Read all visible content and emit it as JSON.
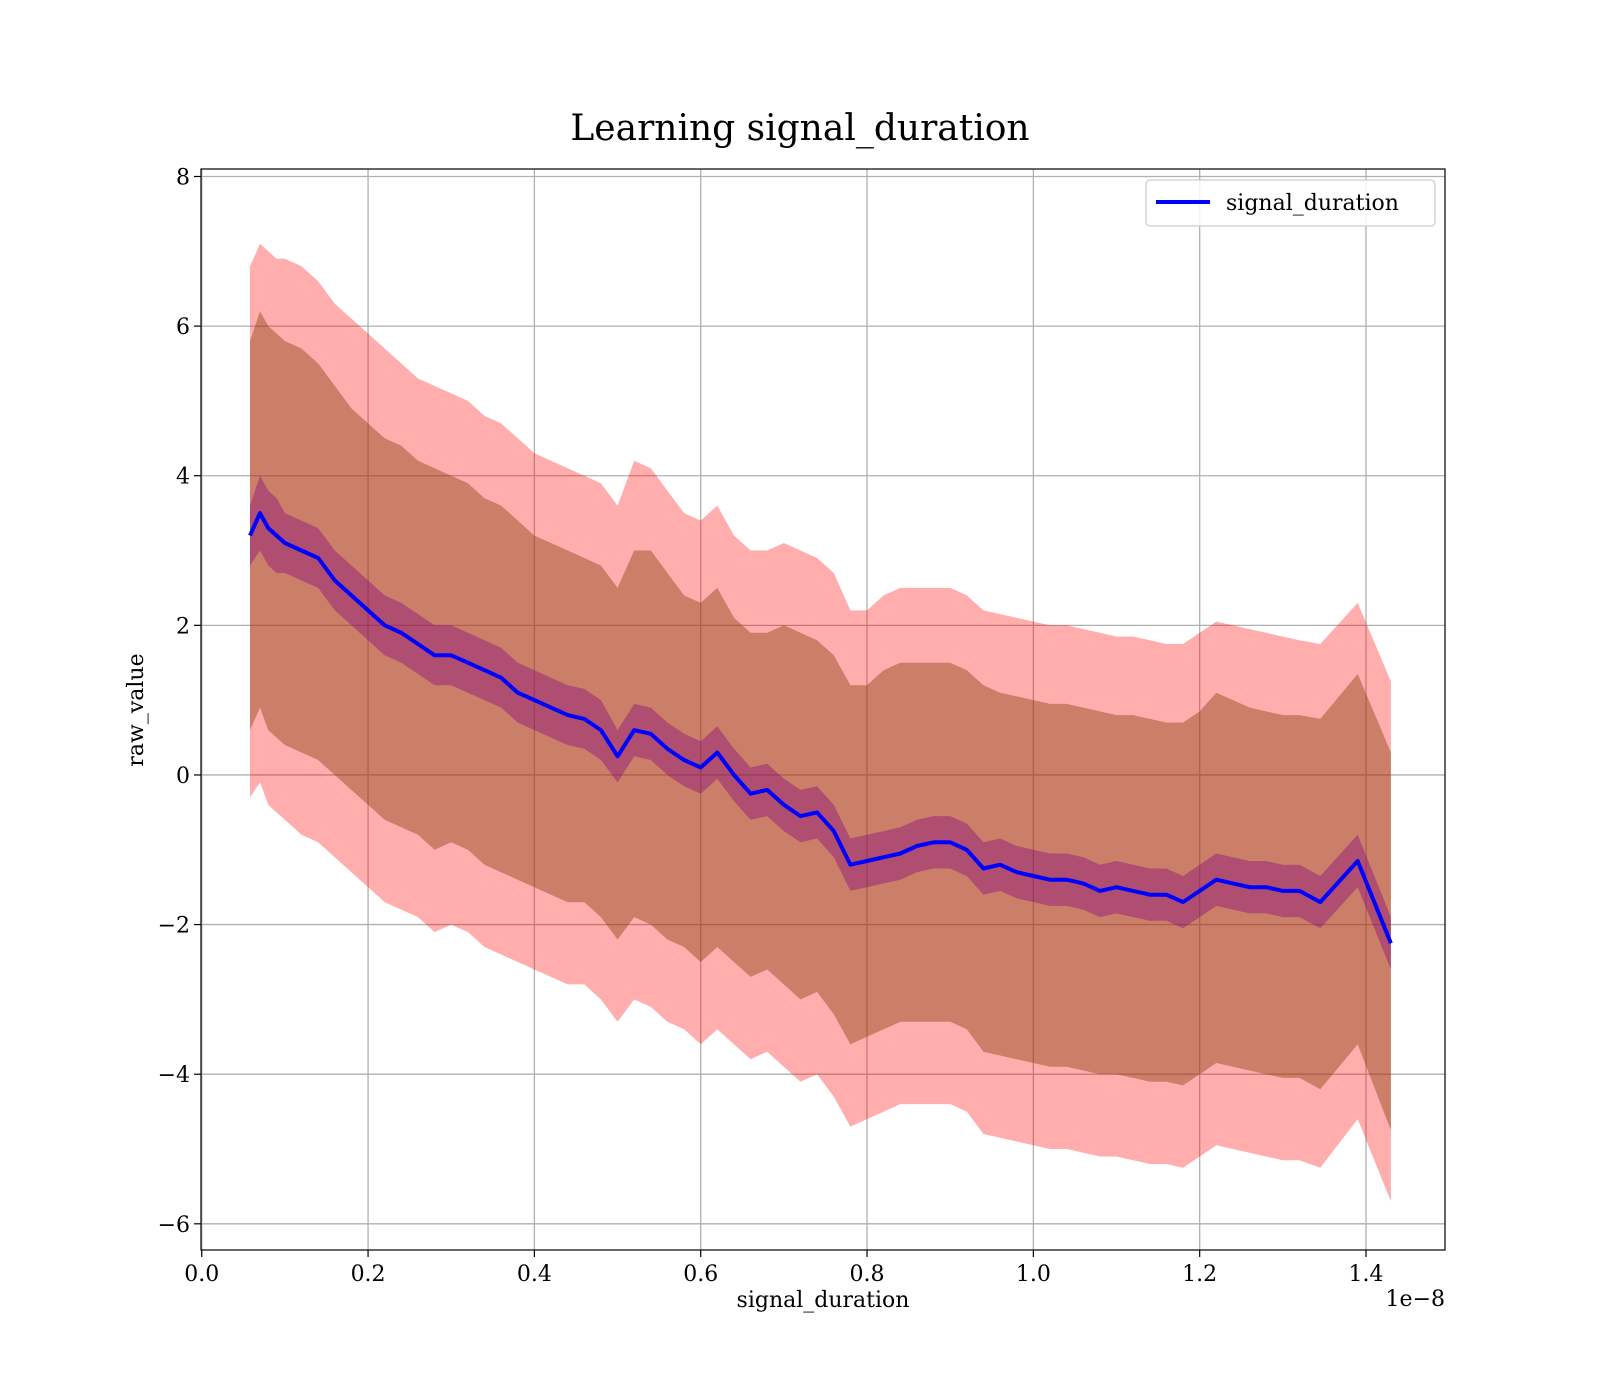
{
  "chart_data": {
    "type": "line",
    "title": "Learning signal_duration",
    "xlabel": "signal_duration",
    "ylabel": "raw_value",
    "x_offset_text": "1e−8",
    "xlim": [
      -0.0009,
      1.495
    ],
    "ylim": [
      -6.35,
      8.1
    ],
    "x_ticks": [
      0.0,
      0.2,
      0.4,
      0.6,
      0.8,
      1.0,
      1.2,
      1.4
    ],
    "x_tick_labels": [
      "0.0",
      "0.2",
      "0.4",
      "0.6",
      "0.8",
      "1.0",
      "1.2",
      "1.4"
    ],
    "y_ticks": [
      -6,
      -4,
      -2,
      0,
      2,
      4,
      6,
      8
    ],
    "y_tick_labels": [
      "−6",
      "−4",
      "−2",
      "0",
      "2",
      "4",
      "6",
      "8"
    ],
    "grid": true,
    "legend_position": "upper right",
    "colors": {
      "line": "#0000ff",
      "outer_band": "#ff0000",
      "middle_band": "#8b4513",
      "inner_band": "#800080"
    },
    "series": [
      {
        "name": "signal_duration",
        "x": [
          0.058,
          0.07,
          0.08,
          0.09,
          0.1,
          0.12,
          0.14,
          0.16,
          0.18,
          0.2,
          0.22,
          0.24,
          0.26,
          0.28,
          0.3,
          0.32,
          0.34,
          0.36,
          0.38,
          0.4,
          0.42,
          0.44,
          0.46,
          0.48,
          0.5,
          0.52,
          0.54,
          0.56,
          0.58,
          0.6,
          0.62,
          0.64,
          0.66,
          0.68,
          0.7,
          0.72,
          0.74,
          0.76,
          0.78,
          0.8,
          0.82,
          0.84,
          0.86,
          0.88,
          0.9,
          0.92,
          0.94,
          0.96,
          0.98,
          1.0,
          1.02,
          1.04,
          1.06,
          1.08,
          1.1,
          1.12,
          1.14,
          1.16,
          1.18,
          1.2,
          1.22,
          1.24,
          1.26,
          1.28,
          1.3,
          1.32,
          1.345,
          1.39,
          1.43
        ],
        "y": [
          3.2,
          3.5,
          3.3,
          3.2,
          3.1,
          3.0,
          2.9,
          2.6,
          2.4,
          2.2,
          2.0,
          1.9,
          1.75,
          1.6,
          1.6,
          1.5,
          1.4,
          1.3,
          1.1,
          1.0,
          0.9,
          0.8,
          0.75,
          0.6,
          0.25,
          0.6,
          0.55,
          0.35,
          0.2,
          0.1,
          0.3,
          0.0,
          -0.25,
          -0.2,
          -0.4,
          -0.55,
          -0.5,
          -0.75,
          -1.2,
          -1.15,
          -1.1,
          -1.05,
          -0.95,
          -0.9,
          -0.9,
          -1.0,
          -1.25,
          -1.2,
          -1.3,
          -1.35,
          -1.4,
          -1.4,
          -1.45,
          -1.55,
          -1.5,
          -1.55,
          -1.6,
          -1.6,
          -1.7,
          -1.55,
          -1.4,
          -1.45,
          -1.5,
          -1.5,
          -1.55,
          -1.55,
          -1.7,
          -1.15,
          -2.25
        ],
        "outer_band": {
          "upper": [
            6.8,
            7.1,
            7.0,
            6.9,
            6.9,
            6.8,
            6.6,
            6.3,
            6.1,
            5.9,
            5.7,
            5.5,
            5.3,
            5.2,
            5.1,
            5.0,
            4.8,
            4.7,
            4.5,
            4.3,
            4.2,
            4.1,
            4.0,
            3.9,
            3.6,
            4.2,
            4.1,
            3.8,
            3.5,
            3.4,
            3.6,
            3.2,
            3.0,
            3.0,
            3.1,
            3.0,
            2.9,
            2.7,
            2.2,
            2.2,
            2.4,
            2.5,
            2.5,
            2.5,
            2.5,
            2.4,
            2.2,
            2.15,
            2.1,
            2.05,
            2.0,
            2.0,
            1.95,
            1.9,
            1.85,
            1.85,
            1.8,
            1.75,
            1.75,
            1.9,
            2.05,
            2.0,
            1.95,
            1.9,
            1.85,
            1.8,
            1.75,
            2.3,
            1.25
          ],
          "lower": [
            -0.3,
            -0.1,
            -0.4,
            -0.5,
            -0.6,
            -0.8,
            -0.9,
            -1.1,
            -1.3,
            -1.5,
            -1.7,
            -1.8,
            -1.9,
            -2.1,
            -2.0,
            -2.1,
            -2.3,
            -2.4,
            -2.5,
            -2.6,
            -2.7,
            -2.8,
            -2.8,
            -3.0,
            -3.3,
            -3.0,
            -3.1,
            -3.3,
            -3.4,
            -3.6,
            -3.4,
            -3.6,
            -3.8,
            -3.7,
            -3.9,
            -4.1,
            -4.0,
            -4.3,
            -4.7,
            -4.6,
            -4.5,
            -4.4,
            -4.4,
            -4.4,
            -4.4,
            -4.5,
            -4.8,
            -4.85,
            -4.9,
            -4.95,
            -5.0,
            -5.0,
            -5.05,
            -5.1,
            -5.1,
            -5.15,
            -5.2,
            -5.2,
            -5.25,
            -5.1,
            -4.95,
            -5.0,
            -5.05,
            -5.1,
            -5.15,
            -5.15,
            -5.25,
            -4.6,
            -5.7
          ]
        },
        "middle_band": {
          "upper": [
            5.8,
            6.2,
            6.0,
            5.9,
            5.8,
            5.7,
            5.5,
            5.2,
            4.9,
            4.7,
            4.5,
            4.4,
            4.2,
            4.1,
            4.0,
            3.9,
            3.7,
            3.6,
            3.4,
            3.2,
            3.1,
            3.0,
            2.9,
            2.8,
            2.5,
            3.0,
            3.0,
            2.7,
            2.4,
            2.3,
            2.5,
            2.1,
            1.9,
            1.9,
            2.0,
            1.9,
            1.8,
            1.6,
            1.2,
            1.2,
            1.4,
            1.5,
            1.5,
            1.5,
            1.5,
            1.4,
            1.2,
            1.1,
            1.05,
            1.0,
            0.95,
            0.95,
            0.9,
            0.85,
            0.8,
            0.8,
            0.75,
            0.7,
            0.7,
            0.85,
            1.1,
            1.0,
            0.9,
            0.85,
            0.8,
            0.8,
            0.75,
            1.35,
            0.3
          ],
          "lower": [
            0.6,
            0.9,
            0.6,
            0.5,
            0.4,
            0.3,
            0.2,
            0.0,
            -0.2,
            -0.4,
            -0.6,
            -0.7,
            -0.8,
            -1.0,
            -0.9,
            -1.0,
            -1.2,
            -1.3,
            -1.4,
            -1.5,
            -1.6,
            -1.7,
            -1.7,
            -1.9,
            -2.2,
            -1.9,
            -2.0,
            -2.2,
            -2.3,
            -2.5,
            -2.3,
            -2.5,
            -2.7,
            -2.6,
            -2.8,
            -3.0,
            -2.9,
            -3.2,
            -3.6,
            -3.5,
            -3.4,
            -3.3,
            -3.3,
            -3.3,
            -3.3,
            -3.4,
            -3.7,
            -3.75,
            -3.8,
            -3.85,
            -3.9,
            -3.9,
            -3.95,
            -4.0,
            -4.0,
            -4.05,
            -4.1,
            -4.1,
            -4.15,
            -4.0,
            -3.85,
            -3.9,
            -3.95,
            -4.0,
            -4.05,
            -4.05,
            -4.2,
            -3.6,
            -4.75
          ]
        },
        "inner_band": {
          "upper": [
            3.6,
            4.0,
            3.8,
            3.7,
            3.5,
            3.4,
            3.3,
            3.0,
            2.8,
            2.6,
            2.4,
            2.3,
            2.15,
            2.0,
            2.0,
            1.9,
            1.8,
            1.7,
            1.5,
            1.4,
            1.3,
            1.2,
            1.15,
            1.0,
            0.6,
            0.95,
            0.9,
            0.7,
            0.55,
            0.45,
            0.65,
            0.35,
            0.1,
            0.15,
            -0.05,
            -0.2,
            -0.15,
            -0.4,
            -0.85,
            -0.8,
            -0.75,
            -0.7,
            -0.6,
            -0.55,
            -0.55,
            -0.65,
            -0.9,
            -0.85,
            -0.95,
            -1.0,
            -1.05,
            -1.05,
            -1.1,
            -1.2,
            -1.15,
            -1.2,
            -1.25,
            -1.25,
            -1.35,
            -1.2,
            -1.05,
            -1.1,
            -1.15,
            -1.15,
            -1.2,
            -1.2,
            -1.35,
            -0.8,
            -1.9
          ],
          "lower": [
            2.8,
            3.0,
            2.8,
            2.7,
            2.7,
            2.6,
            2.5,
            2.2,
            2.0,
            1.8,
            1.6,
            1.5,
            1.35,
            1.2,
            1.2,
            1.1,
            1.0,
            0.9,
            0.7,
            0.6,
            0.5,
            0.4,
            0.35,
            0.2,
            -0.1,
            0.25,
            0.2,
            0.0,
            -0.15,
            -0.25,
            -0.05,
            -0.35,
            -0.6,
            -0.55,
            -0.75,
            -0.9,
            -0.85,
            -1.1,
            -1.55,
            -1.5,
            -1.45,
            -1.4,
            -1.3,
            -1.25,
            -1.25,
            -1.35,
            -1.6,
            -1.55,
            -1.65,
            -1.7,
            -1.75,
            -1.75,
            -1.8,
            -1.9,
            -1.85,
            -1.9,
            -1.95,
            -1.95,
            -2.05,
            -1.9,
            -1.75,
            -1.8,
            -1.85,
            -1.85,
            -1.9,
            -1.9,
            -2.05,
            -1.5,
            -2.6
          ]
        }
      }
    ]
  }
}
